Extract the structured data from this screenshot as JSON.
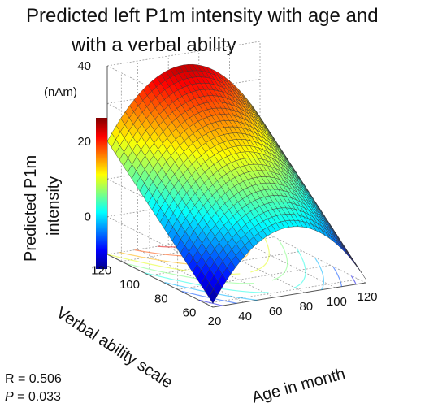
{
  "chart_data": {
    "type": "surface",
    "title_line1": "Predicted left P1m intensity with age and",
    "title_line2": "with a verbal ability",
    "zlabel_line1": "Predicted P1m",
    "zlabel_line2": "intensity",
    "zunit": "(nAm)",
    "xlabel": "Age in month",
    "ylabel": "Verbal ability scale",
    "x_ticks": [
      "20",
      "40",
      "60",
      "80",
      "100",
      "120"
    ],
    "y_ticks": [
      "60",
      "80",
      "100",
      "120"
    ],
    "z_ticks": [
      "0",
      "20",
      "40"
    ],
    "xlim": [
      20,
      120
    ],
    "ylim": [
      55,
      130
    ],
    "zlim": [
      -10,
      40
    ],
    "colormap": "jet",
    "grid": true,
    "contours_on_floor": true,
    "surface_points": {
      "description_units": "age (months), verbal ability scale, predicted intensity (nAm)",
      "corners": [
        {
          "age": 20,
          "verbal": 130,
          "intensity": 20
        },
        {
          "age": 20,
          "verbal": 55,
          "intensity": -9
        },
        {
          "age": 120,
          "verbal": 130,
          "intensity": 14
        },
        {
          "age": 120,
          "verbal": 55,
          "intensity": -10
        }
      ],
      "peak": {
        "age": 70,
        "verbal": 130,
        "intensity": 37
      }
    }
  },
  "stats": {
    "r_text": "R = 0.506",
    "p_label": "P",
    "p_value": " = 0.033"
  }
}
